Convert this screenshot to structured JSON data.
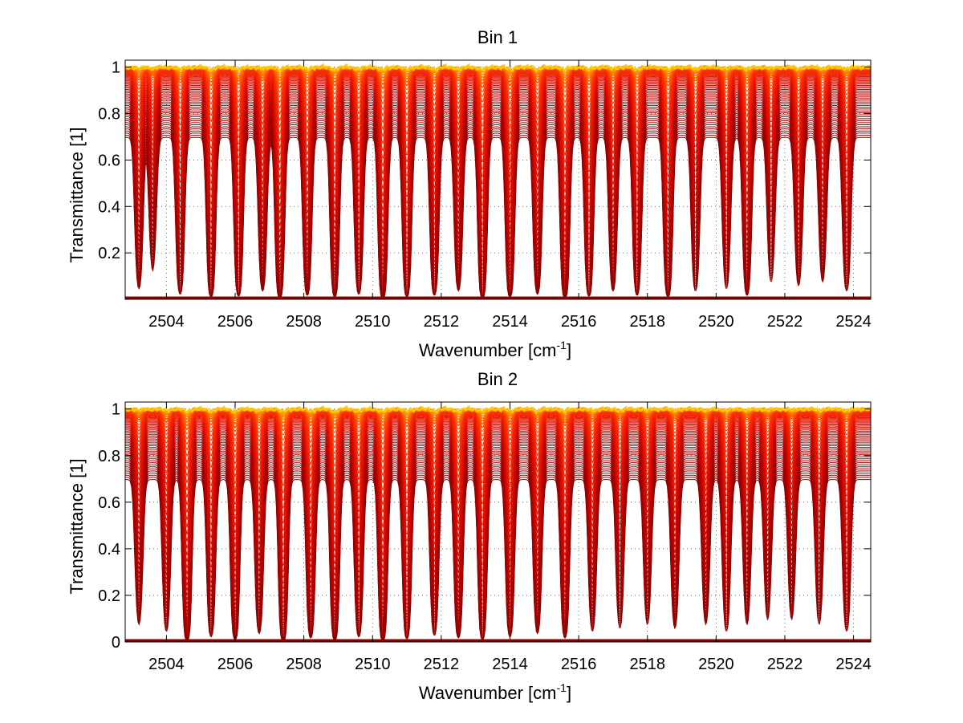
{
  "chart_data": [
    {
      "type": "line",
      "title": "Bin 1",
      "xlabel": "Wavenumber [cm",
      "xlabel_sup": "-1",
      "xlabel_close": "]",
      "ylabel": "Transmittance [1]",
      "xlim": [
        2502.8,
        2524.5
      ],
      "ylim": [
        0,
        1.03
      ],
      "xticks": [
        2504,
        2506,
        2508,
        2510,
        2512,
        2514,
        2516,
        2518,
        2520,
        2522,
        2524
      ],
      "yticks": [
        0.2,
        0.4,
        0.6,
        0.8,
        1
      ],
      "ytick_labels": [
        "0.2",
        "0.4",
        "0.6",
        "0.8",
        "1"
      ],
      "grid": true,
      "line_count": 60,
      "colormap": [
        "#ffd000",
        "#ff8c00",
        "#ff3000",
        "#e01000",
        "#b00000",
        "#8b0000"
      ],
      "absorption_lines": [
        {
          "x": 2503.2,
          "depth": 0.55
        },
        {
          "x": 2503.6,
          "depth": 0.35
        },
        {
          "x": 2504.4,
          "depth": 0.7
        },
        {
          "x": 2505.3,
          "depth": 0.85
        },
        {
          "x": 2506.1,
          "depth": 0.8
        },
        {
          "x": 2506.8,
          "depth": 0.6
        },
        {
          "x": 2507.3,
          "depth": 0.95
        },
        {
          "x": 2508.1,
          "depth": 0.75
        },
        {
          "x": 2508.9,
          "depth": 0.85
        },
        {
          "x": 2509.6,
          "depth": 0.7
        },
        {
          "x": 2510.3,
          "depth": 1.0
        },
        {
          "x": 2511.0,
          "depth": 0.85
        },
        {
          "x": 2511.8,
          "depth": 0.75
        },
        {
          "x": 2512.5,
          "depth": 0.6
        },
        {
          "x": 2513.2,
          "depth": 0.95
        },
        {
          "x": 2514.0,
          "depth": 0.85
        },
        {
          "x": 2514.8,
          "depth": 0.7
        },
        {
          "x": 2515.6,
          "depth": 0.95
        },
        {
          "x": 2516.3,
          "depth": 0.8
        },
        {
          "x": 2517.0,
          "depth": 0.6
        },
        {
          "x": 2517.7,
          "depth": 0.75
        },
        {
          "x": 2518.6,
          "depth": 0.85
        },
        {
          "x": 2519.4,
          "depth": 0.6
        },
        {
          "x": 2520.3,
          "depth": 0.55
        },
        {
          "x": 2520.9,
          "depth": 0.75
        },
        {
          "x": 2521.6,
          "depth": 0.45
        },
        {
          "x": 2522.4,
          "depth": 0.5
        },
        {
          "x": 2523.1,
          "depth": 0.45
        },
        {
          "x": 2523.8,
          "depth": 0.6
        }
      ]
    },
    {
      "type": "line",
      "title": "Bin 2",
      "xlabel": "Wavenumber [cm",
      "xlabel_sup": "-1",
      "xlabel_close": "]",
      "ylabel": "Transmittance [1]",
      "xlim": [
        2502.8,
        2524.5
      ],
      "ylim": [
        0,
        1.03
      ],
      "xticks": [
        2504,
        2506,
        2508,
        2510,
        2512,
        2514,
        2516,
        2518,
        2520,
        2522,
        2524
      ],
      "yticks": [
        0,
        0.2,
        0.4,
        0.6,
        0.8,
        1
      ],
      "ytick_labels": [
        "0",
        "0.2",
        "0.4",
        "0.6",
        "0.8",
        "1"
      ],
      "grid": true,
      "line_count": 60,
      "colormap": [
        "#ffd000",
        "#ff8c00",
        "#ff3000",
        "#e01000",
        "#b00000",
        "#8b0000"
      ],
      "absorption_lines": [
        {
          "x": 2503.2,
          "depth": 0.45
        },
        {
          "x": 2504.0,
          "depth": 0.55
        },
        {
          "x": 2504.6,
          "depth": 0.95
        },
        {
          "x": 2505.3,
          "depth": 0.7
        },
        {
          "x": 2506.0,
          "depth": 0.85
        },
        {
          "x": 2506.7,
          "depth": 0.6
        },
        {
          "x": 2507.4,
          "depth": 1.0
        },
        {
          "x": 2508.2,
          "depth": 0.75
        },
        {
          "x": 2508.9,
          "depth": 0.9
        },
        {
          "x": 2509.6,
          "depth": 0.7
        },
        {
          "x": 2510.3,
          "depth": 0.95
        },
        {
          "x": 2511.0,
          "depth": 0.8
        },
        {
          "x": 2511.8,
          "depth": 0.65
        },
        {
          "x": 2512.5,
          "depth": 0.75
        },
        {
          "x": 2513.2,
          "depth": 0.85
        },
        {
          "x": 2514.0,
          "depth": 0.7
        },
        {
          "x": 2514.8,
          "depth": 0.6
        },
        {
          "x": 2515.6,
          "depth": 0.75
        },
        {
          "x": 2516.4,
          "depth": 0.55
        },
        {
          "x": 2517.2,
          "depth": 0.5
        },
        {
          "x": 2518.0,
          "depth": 0.45
        },
        {
          "x": 2518.8,
          "depth": 0.5
        },
        {
          "x": 2519.7,
          "depth": 0.45
        },
        {
          "x": 2520.3,
          "depth": 0.55
        },
        {
          "x": 2520.9,
          "depth": 0.45
        },
        {
          "x": 2521.5,
          "depth": 0.4
        },
        {
          "x": 2522.2,
          "depth": 0.4
        },
        {
          "x": 2523.0,
          "depth": 0.45
        },
        {
          "x": 2523.8,
          "depth": 0.55
        }
      ]
    }
  ]
}
